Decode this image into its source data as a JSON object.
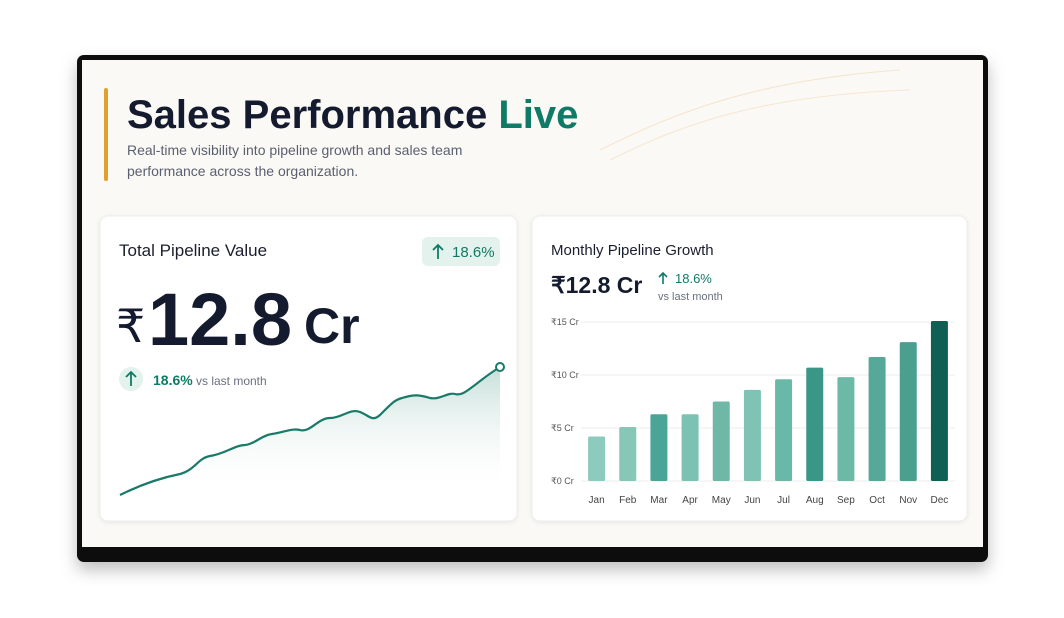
{
  "header": {
    "title": "Sales Performance",
    "title_highlight": "Live",
    "subtitle": "Real-time visibility into pipeline growth and sales team performance across the organization."
  },
  "total_card": {
    "title": "Total Pipeline Value",
    "badge": "18.6%",
    "currency": "₹",
    "amount": "12.8",
    "unit": "Cr",
    "change": "18.6%",
    "change_note": "vs last month"
  },
  "monthly_card": {
    "headline": "₹12.8 Cr",
    "change": "18.6%",
    "change_note": "vs last month"
  },
  "chart_data": {
    "type": "bar",
    "title": "Monthly Pipeline Growth",
    "categories": [
      "Jan",
      "Feb",
      "Mar",
      "Apr",
      "May",
      "Jun",
      "Jul",
      "Aug",
      "Sep",
      "Oct",
      "Nov",
      "Dec"
    ],
    "values": [
      4.2,
      5.1,
      6.3,
      6.3,
      7.5,
      8.6,
      9.6,
      10.7,
      9.8,
      11.7,
      13.1,
      15.1
    ],
    "colors": [
      "#8ccbbd",
      "#86c7b8",
      "#4aa596",
      "#7cc2b2",
      "#6fb8a8",
      "#7ec3b4",
      "#6ab8a7",
      "#3a9787",
      "#6db9a8",
      "#56a998",
      "#4a9f8e",
      "#0f5f54"
    ],
    "ylim": [
      0,
      15
    ],
    "yticks": [
      {
        "value": 0,
        "label": "₹0 Cr"
      },
      {
        "value": 5,
        "label": "₹5 Cr"
      },
      {
        "value": 10,
        "label": "₹10 Cr"
      },
      {
        "value": 15,
        "label": "₹15 Cr"
      }
    ],
    "grid": true
  }
}
